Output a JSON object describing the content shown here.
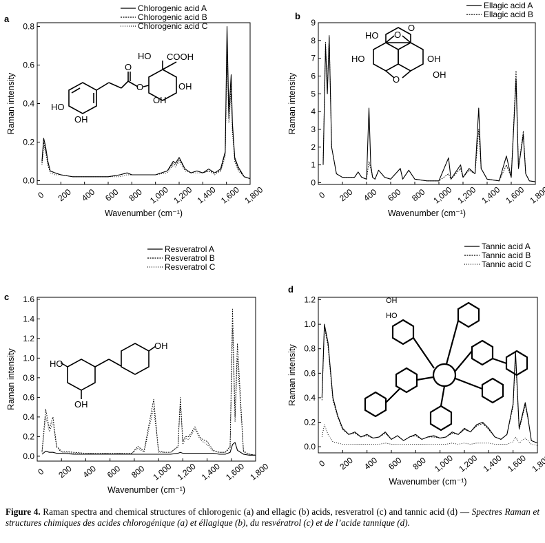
{
  "panels": [
    {
      "id": "a",
      "letter": "a",
      "type": "line",
      "xlabel": "Wavenumber (cm⁻¹)",
      "ylabel": "Raman intensity",
      "xlim": [
        0,
        1800
      ],
      "ylim": [
        -0.02,
        0.82
      ],
      "xticks": [
        0,
        200,
        400,
        600,
        800,
        1000,
        1200,
        1400,
        1600,
        1800
      ],
      "xtick_labels": [
        "0",
        "200",
        "400",
        "600",
        "800",
        "1,000",
        "1,200",
        "1,400",
        "1,600",
        "1,800"
      ],
      "yticks": [
        0,
        0.2,
        0.4,
        0.6,
        0.8
      ],
      "ytick_labels": [
        "0.0",
        "0.2",
        "0.4",
        "0.6",
        "0.8"
      ],
      "legend": [
        "Chlorogenic acid A",
        "Chlorogenic acid B",
        "Chlorogenic acid C"
      ],
      "chart_data": {
        "type": "line",
        "x": [
          40,
          55,
          70,
          90,
          110,
          150,
          200,
          300,
          400,
          500,
          600,
          700,
          760,
          800,
          900,
          1000,
          1100,
          1150,
          1170,
          1200,
          1250,
          1300,
          1350,
          1400,
          1450,
          1500,
          1550,
          1590,
          1605,
          1620,
          1640,
          1650,
          1670,
          1700,
          1750,
          1800
        ],
        "series": [
          {
            "name": "Chlorogenic acid A",
            "values": [
              0.1,
              0.22,
              0.18,
              0.1,
              0.05,
              0.04,
              0.03,
              0.02,
              0.02,
              0.02,
              0.02,
              0.03,
              0.04,
              0.03,
              0.03,
              0.03,
              0.05,
              0.1,
              0.09,
              0.12,
              0.06,
              0.04,
              0.05,
              0.04,
              0.06,
              0.04,
              0.06,
              0.15,
              0.8,
              0.35,
              0.55,
              0.3,
              0.12,
              0.07,
              0.02,
              0.01
            ]
          },
          {
            "name": "Chlorogenic acid B",
            "values": [
              0.09,
              0.2,
              0.16,
              0.09,
              0.05,
              0.04,
              0.03,
              0.02,
              0.02,
              0.02,
              0.02,
              0.03,
              0.04,
              0.03,
              0.03,
              0.03,
              0.05,
              0.09,
              0.08,
              0.11,
              0.06,
              0.04,
              0.05,
              0.04,
              0.05,
              0.04,
              0.05,
              0.14,
              0.72,
              0.32,
              0.5,
              0.28,
              0.11,
              0.06,
              0.02,
              0.01
            ]
          },
          {
            "name": "Chlorogenic acid C",
            "values": [
              0.08,
              0.18,
              0.15,
              0.08,
              0.04,
              0.03,
              0.03,
              0.02,
              0.02,
              0.02,
              0.02,
              0.02,
              0.03,
              0.03,
              0.03,
              0.03,
              0.04,
              0.08,
              0.07,
              0.1,
              0.05,
              0.04,
              0.04,
              0.04,
              0.05,
              0.03,
              0.05,
              0.12,
              0.65,
              0.3,
              0.45,
              0.25,
              0.1,
              0.05,
              0.02,
              0.01
            ]
          }
        ]
      }
    },
    {
      "id": "b",
      "letter": "b",
      "type": "line",
      "xlabel": "Wavenumber (cm⁻¹)",
      "ylabel": "Raman intensity",
      "xlim": [
        0,
        1800
      ],
      "ylim": [
        -0.1,
        9
      ],
      "xticks": [
        0,
        200,
        400,
        600,
        800,
        1000,
        1200,
        1400,
        1600,
        1800
      ],
      "xtick_labels": [
        "0",
        "200",
        "400",
        "600",
        "800",
        "1,000",
        "1,200",
        "1,400",
        "1,600",
        "1,800"
      ],
      "yticks": [
        0,
        1,
        2,
        3,
        4,
        5,
        6,
        7,
        8,
        9
      ],
      "ytick_labels": [
        "0",
        "1",
        "2",
        "3",
        "4",
        "5",
        "6",
        "7",
        "8",
        "9"
      ],
      "legend": [
        "Ellagic acid A",
        "Ellagic acid B"
      ],
      "chart_data": {
        "type": "line",
        "x": [
          40,
          60,
          75,
          90,
          110,
          150,
          200,
          300,
          330,
          360,
          400,
          420,
          435,
          450,
          470,
          500,
          550,
          600,
          680,
          700,
          750,
          800,
          900,
          1000,
          1080,
          1100,
          1180,
          1200,
          1250,
          1300,
          1330,
          1350,
          1400,
          1500,
          1560,
          1600,
          1640,
          1660,
          1700,
          1720,
          1750,
          1800
        ],
        "series": [
          {
            "name": "Ellagic acid A",
            "values": [
              1.0,
              7.7,
              5.0,
              8.2,
              2.0,
              0.5,
              0.3,
              0.3,
              0.6,
              0.3,
              0.2,
              4.2,
              1.0,
              0.3,
              0.2,
              0.7,
              0.3,
              0.2,
              0.8,
              0.2,
              0.7,
              0.2,
              0.1,
              0.1,
              1.4,
              0.2,
              1.0,
              0.3,
              0.8,
              0.5,
              4.2,
              0.8,
              0.2,
              0.1,
              1.5,
              0.3,
              5.8,
              0.8,
              2.7,
              0.5,
              0.1,
              0.05
            ]
          },
          {
            "name": "Ellagic acid B",
            "values": [
              1.1,
              7.9,
              5.2,
              8.3,
              2.0,
              0.5,
              0.3,
              0.3,
              0.6,
              0.3,
              0.2,
              1.2,
              0.8,
              0.3,
              0.2,
              0.7,
              0.3,
              0.2,
              0.8,
              0.2,
              0.7,
              0.2,
              0.1,
              0.1,
              0.5,
              0.2,
              0.8,
              0.3,
              0.7,
              0.5,
              3.0,
              0.8,
              0.2,
              0.1,
              1.0,
              0.3,
              6.3,
              0.8,
              2.9,
              0.5,
              0.1,
              0.05
            ]
          }
        ]
      }
    },
    {
      "id": "c",
      "letter": "c",
      "type": "line",
      "xlabel": "Wavenumber (cm⁻¹)",
      "ylabel": "Raman intensity",
      "xlim": [
        0,
        1800
      ],
      "ylim": [
        -0.05,
        1.62
      ],
      "xticks": [
        0,
        200,
        400,
        600,
        800,
        1000,
        1200,
        1400,
        1600,
        1800
      ],
      "xtick_labels": [
        "0",
        "200",
        "400",
        "600",
        "800",
        "1,000",
        "1,200",
        "1,400",
        "1,600",
        "1,800"
      ],
      "yticks": [
        0,
        0.2,
        0.4,
        0.6,
        0.8,
        1.0,
        1.2,
        1.4,
        1.6
      ],
      "ytick_labels": [
        "0.0",
        "0.2",
        "0.4",
        "0.6",
        "0.8",
        "1.0",
        "1.2",
        "1.4",
        "1.6"
      ],
      "legend": [
        "Resveratrol A",
        "Resveratrol B",
        "Resveratrol C"
      ],
      "chart_data": {
        "type": "line",
        "x": [
          40,
          70,
          100,
          130,
          160,
          200,
          300,
          400,
          500,
          600,
          700,
          780,
          830,
          880,
          960,
          1000,
          1050,
          1100,
          1160,
          1180,
          1200,
          1220,
          1250,
          1300,
          1330,
          1350,
          1400,
          1450,
          1500,
          1550,
          1590,
          1610,
          1630,
          1650,
          1700,
          1750,
          1800
        ],
        "series": [
          {
            "name": "Resveratrol A",
            "values": [
              0.02,
              0.05,
              0.04,
              0.04,
              0.03,
              0.03,
              0.02,
              0.02,
              0.02,
              0.02,
              0.02,
              0.02,
              0.02,
              0.02,
              0.02,
              0.02,
              0.02,
              0.02,
              0.03,
              0.04,
              0.03,
              0.03,
              0.03,
              0.03,
              0.03,
              0.03,
              0.03,
              0.03,
              0.02,
              0.02,
              0.04,
              0.12,
              0.14,
              0.06,
              0.02,
              0.01,
              0.01
            ]
          },
          {
            "name": "Resveratrol B",
            "values": [
              0.05,
              0.48,
              0.28,
              0.4,
              0.1,
              0.05,
              0.04,
              0.03,
              0.03,
              0.03,
              0.03,
              0.03,
              0.1,
              0.05,
              0.58,
              0.05,
              0.04,
              0.04,
              0.1,
              0.6,
              0.15,
              0.2,
              0.2,
              0.3,
              0.22,
              0.18,
              0.15,
              0.06,
              0.04,
              0.04,
              0.1,
              1.5,
              0.4,
              1.15,
              0.05,
              0.02,
              0.01
            ]
          },
          {
            "name": "Resveratrol C",
            "values": [
              0.04,
              0.4,
              0.25,
              0.34,
              0.09,
              0.04,
              0.03,
              0.03,
              0.03,
              0.03,
              0.03,
              0.03,
              0.08,
              0.04,
              0.5,
              0.04,
              0.04,
              0.04,
              0.09,
              0.55,
              0.12,
              0.18,
              0.17,
              0.28,
              0.2,
              0.16,
              0.12,
              0.05,
              0.04,
              0.04,
              0.08,
              1.3,
              0.35,
              1.0,
              0.04,
              0.02,
              0.01
            ]
          }
        ]
      }
    },
    {
      "id": "d",
      "letter": "d",
      "type": "line",
      "xlabel": "Wavenumber (cm⁻¹)",
      "ylabel": "Raman intensity",
      "xlim": [
        0,
        1800
      ],
      "ylim": [
        -0.05,
        1.22
      ],
      "xticks": [
        0,
        200,
        400,
        600,
        800,
        1000,
        1200,
        1400,
        1600,
        1800
      ],
      "xtick_labels": [
        "0",
        "200",
        "400",
        "600",
        "800",
        "1,000",
        "1,200",
        "1,400",
        "1,600",
        "1,800"
      ],
      "yticks": [
        0,
        0.2,
        0.4,
        0.6,
        0.8,
        1.0,
        1.2
      ],
      "ytick_labels": [
        "0.0",
        "0.2",
        "0.4",
        "0.6",
        "0.8",
        "1.0",
        "1.2"
      ],
      "legend": [
        "Tannic acid A",
        "Tannic acid B",
        "Tannic acid C"
      ],
      "chart_data": {
        "type": "line",
        "x": [
          30,
          50,
          80,
          120,
          160,
          200,
          250,
          300,
          350,
          400,
          450,
          500,
          550,
          600,
          650,
          700,
          750,
          800,
          850,
          900,
          950,
          1000,
          1050,
          1100,
          1150,
          1200,
          1250,
          1300,
          1350,
          1400,
          1450,
          1500,
          1550,
          1600,
          1620,
          1650,
          1700,
          1720,
          1750,
          1800
        ],
        "series": [
          {
            "name": "Tannic acid A",
            "values": [
              0.4,
              1.0,
              0.85,
              0.4,
              0.25,
              0.15,
              0.1,
              0.12,
              0.08,
              0.1,
              0.07,
              0.08,
              0.12,
              0.06,
              0.09,
              0.05,
              0.08,
              0.1,
              0.06,
              0.08,
              0.09,
              0.07,
              0.08,
              0.12,
              0.1,
              0.15,
              0.12,
              0.18,
              0.2,
              0.15,
              0.08,
              0.06,
              0.1,
              0.35,
              0.78,
              0.15,
              0.36,
              0.25,
              0.05,
              0.03
            ]
          },
          {
            "name": "Tannic acid B",
            "values": [
              0.38,
              0.98,
              0.82,
              0.38,
              0.24,
              0.14,
              0.1,
              0.11,
              0.08,
              0.09,
              0.07,
              0.08,
              0.11,
              0.06,
              0.09,
              0.05,
              0.08,
              0.09,
              0.06,
              0.08,
              0.08,
              0.07,
              0.08,
              0.11,
              0.1,
              0.14,
              0.12,
              0.17,
              0.19,
              0.14,
              0.08,
              0.06,
              0.1,
              0.33,
              0.74,
              0.14,
              0.34,
              0.24,
              0.05,
              0.03
            ]
          },
          {
            "name": "Tannic acid C",
            "values": [
              0.08,
              0.18,
              0.1,
              0.04,
              0.03,
              0.02,
              0.02,
              0.02,
              0.02,
              0.02,
              0.02,
              0.02,
              0.03,
              0.02,
              0.02,
              0.02,
              0.02,
              0.02,
              0.02,
              0.02,
              0.02,
              0.02,
              0.02,
              0.03,
              0.02,
              0.03,
              0.02,
              0.03,
              0.03,
              0.03,
              0.02,
              0.02,
              0.02,
              0.04,
              0.08,
              0.03,
              0.07,
              0.05,
              0.02,
              0.01
            ]
          }
        ]
      }
    }
  ],
  "structures": {
    "a_labels": [
      "HO",
      "COOH",
      "O",
      "O",
      "OH",
      "HO",
      "OH",
      "OH"
    ],
    "b_labels": [
      "HO",
      "O",
      "HO",
      "OH",
      "O",
      "OH",
      "O"
    ],
    "c_labels": [
      "OH",
      "HO",
      "OH"
    ],
    "d_labels": [
      "OH",
      "HO"
    ]
  },
  "caption": {
    "label": "Figure 4.",
    "english": "Raman spectra and chemical structures of chlorogenic (a) and ellagic (b) acids, resveratrol (c) and tannic acid (d) —",
    "french": "Spectres Raman et structures chimiques des acides chlorogénique (a) et éllagique (b), du resvératrol (c) et de l’acide tannique (d)."
  }
}
